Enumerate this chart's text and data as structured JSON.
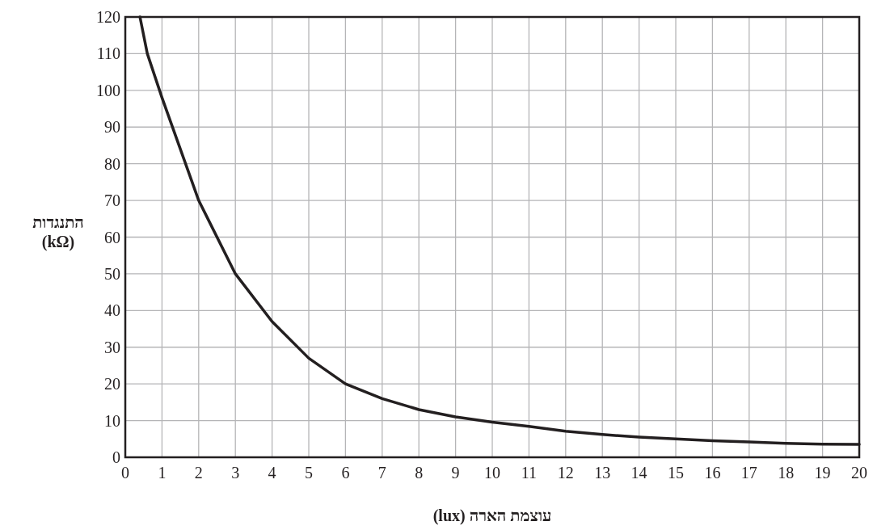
{
  "chart_data": {
    "type": "line",
    "xlabel": "עוצמת הארה (lux)",
    "ylabel": "התנגדות (kΩ)",
    "x": [
      0.4,
      0.6,
      1,
      2,
      3,
      4,
      5,
      6,
      7,
      8,
      9,
      10,
      11,
      12,
      13,
      14,
      15,
      16,
      17,
      18,
      19,
      20
    ],
    "values": [
      120,
      110,
      98,
      70,
      50,
      37,
      27,
      20,
      16,
      13,
      11,
      9.6,
      8.4,
      7.1,
      6.2,
      5.5,
      5,
      4.5,
      4.2,
      3.8,
      3.6,
      3.5
    ],
    "color": "#231f20",
    "xlim": [
      0,
      20
    ],
    "ylim": [
      0,
      120
    ],
    "xticks": [
      0,
      1,
      2,
      3,
      4,
      5,
      6,
      7,
      8,
      9,
      10,
      11,
      12,
      13,
      14,
      15,
      16,
      17,
      18,
      19,
      20
    ],
    "yticks": [
      0,
      10,
      20,
      30,
      40,
      50,
      60,
      70,
      80,
      90,
      100,
      110,
      120
    ],
    "grid": true
  }
}
